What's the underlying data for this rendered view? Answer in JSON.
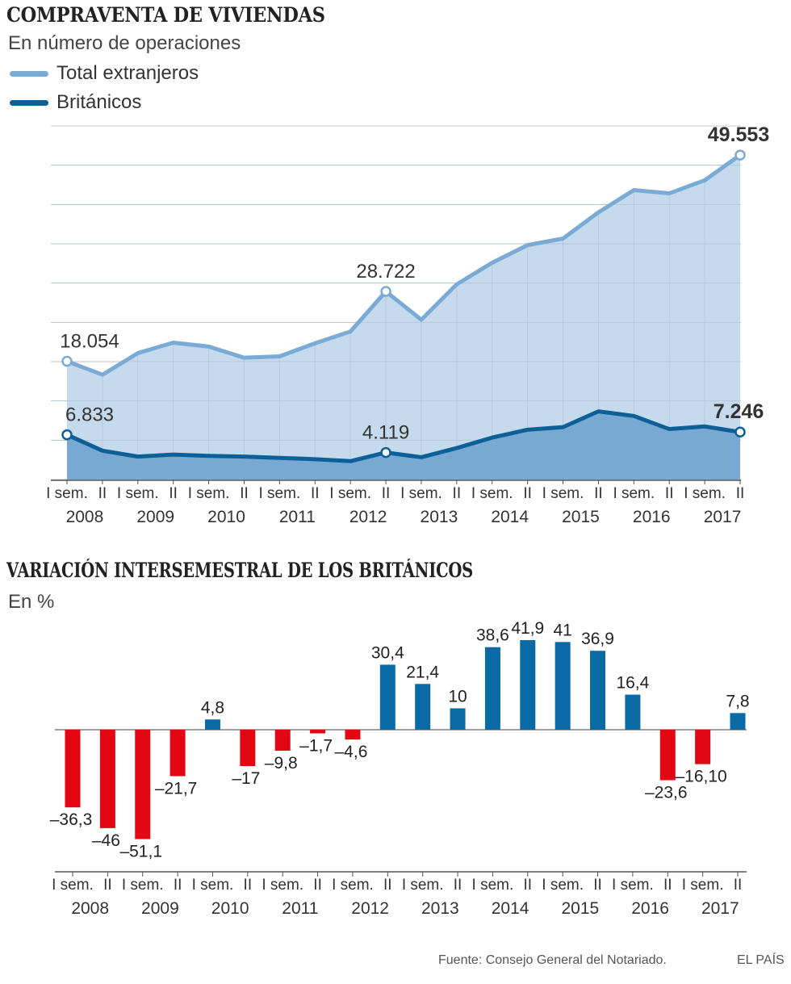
{
  "colors": {
    "extranjeros_line": "#7aaad6",
    "extranjeros_fill": "#bcd3ea",
    "britanicos_line": "#0c5f97",
    "britanicos_fill": "#78a9d3",
    "positive": "#0a6aa6",
    "negative": "#e30613",
    "grid": "#c8c8c8",
    "axis": "#555555"
  },
  "chart1": {
    "title": "COMPRAVENTA DE VIVIENDAS",
    "subtitle": "En número de operaciones"
  },
  "chart2": {
    "title": "VARIACIÓN INTERSEMESTRAL DE LOS BRITÁNICOS",
    "subtitle": "En %"
  },
  "legend": {
    "extranjeros": "Total extranjeros",
    "britanicos": "Británicos"
  },
  "footer": {
    "source": "Fuente: Consejo General del Notariado.",
    "brand": "EL PAÍS"
  },
  "chart_data": [
    {
      "type": "area",
      "title": "COMPRAVENTA DE VIVIENDAS",
      "ylabel": "En número de operaciones",
      "ylim": [
        0,
        54000
      ],
      "semester_labels": [
        "I sem.",
        "II"
      ],
      "years": [
        "2008",
        "2009",
        "2010",
        "2011",
        "2012",
        "2013",
        "2014",
        "2015",
        "2016",
        "2017"
      ],
      "series": [
        {
          "name": "Total extranjeros",
          "values": [
            18054,
            16000,
            19300,
            20900,
            20300,
            18600,
            18800,
            20800,
            22600,
            28722,
            24400,
            29800,
            33100,
            35800,
            36800,
            40800,
            44200,
            43700,
            45700,
            49553
          ]
        },
        {
          "name": "Británicos",
          "values": [
            6833,
            4400,
            3500,
            3800,
            3600,
            3500,
            3300,
            3100,
            2800,
            4119,
            3400,
            4800,
            6400,
            7600,
            8000,
            10400,
            9700,
            7700,
            8100,
            7246
          ]
        }
      ],
      "annotations": [
        {
          "series": 0,
          "index": 0,
          "label": "18.054",
          "bold": false
        },
        {
          "series": 0,
          "index": 9,
          "label": "28.722",
          "bold": false
        },
        {
          "series": 0,
          "index": 19,
          "label": "49.553",
          "bold": true
        },
        {
          "series": 1,
          "index": 0,
          "label": "6.833",
          "bold": false
        },
        {
          "series": 1,
          "index": 9,
          "label": "4.119",
          "bold": false
        },
        {
          "series": 1,
          "index": 19,
          "label": "7.246",
          "bold": true
        }
      ]
    },
    {
      "type": "bar",
      "title": "VARIACIÓN INTERSEMESTRAL DE LOS BRITÁNICOS",
      "ylabel": "En %",
      "ylim": [
        -60,
        50
      ],
      "semester_labels": [
        "I sem.",
        "II"
      ],
      "years": [
        "2008",
        "2009",
        "2010",
        "2011",
        "2012",
        "2013",
        "2014",
        "2015",
        "2016",
        "2017"
      ],
      "values": [
        -36.3,
        -46,
        -51.1,
        -21.7,
        4.8,
        -17,
        -9.8,
        -1.7,
        -4.6,
        30.4,
        21.4,
        10,
        38.6,
        41.9,
        41,
        36.9,
        16.4,
        -23.6,
        -16.1,
        7.8
      ],
      "labels": [
        "–36,3",
        "–46",
        "–51,1",
        "–21,7",
        "4,8",
        "–17",
        "–9,8",
        "–1,7",
        "–4,6",
        "30,4",
        "21,4",
        "10",
        "38,6",
        "41,9",
        "41",
        "36,9",
        "16,4",
        "–23,6",
        "–16,10",
        "7,8"
      ]
    }
  ]
}
